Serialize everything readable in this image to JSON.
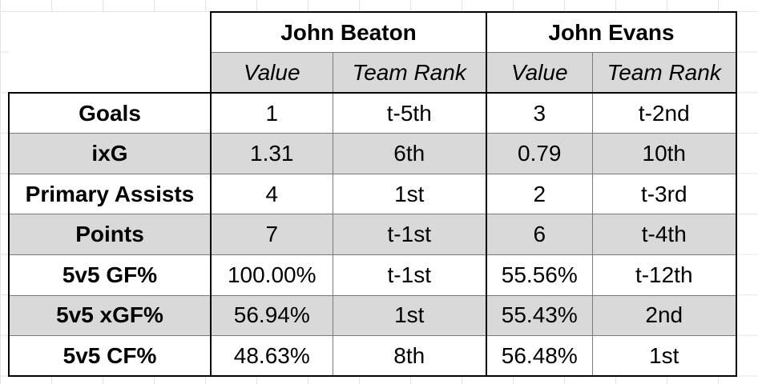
{
  "players": [
    "John Beaton",
    "John Evans"
  ],
  "subheaders": [
    "Value",
    "Team Rank",
    "Value",
    "Team Rank"
  ],
  "rows": [
    {
      "metric": "Goals",
      "cells": [
        "1",
        "t-5th",
        "3",
        "t-2nd"
      ]
    },
    {
      "metric": "ixG",
      "cells": [
        "1.31",
        "6th",
        "0.79",
        "10th"
      ]
    },
    {
      "metric": "Primary Assists",
      "cells": [
        "4",
        "1st",
        "2",
        "t-3rd"
      ]
    },
    {
      "metric": "Points",
      "cells": [
        "7",
        "t-1st",
        "6",
        "t-4th"
      ]
    },
    {
      "metric": "5v5 GF%",
      "cells": [
        "100.00%",
        "t-1st",
        "55.56%",
        "t-12th"
      ]
    },
    {
      "metric": "5v5 xGF%",
      "cells": [
        "56.94%",
        "1st",
        "55.43%",
        "2nd"
      ]
    },
    {
      "metric": "5v5 CF%",
      "cells": [
        "48.63%",
        "8th",
        "56.48%",
        "1st"
      ]
    }
  ],
  "colors": {
    "shade": "#d9d9d9",
    "border": "#000000"
  }
}
